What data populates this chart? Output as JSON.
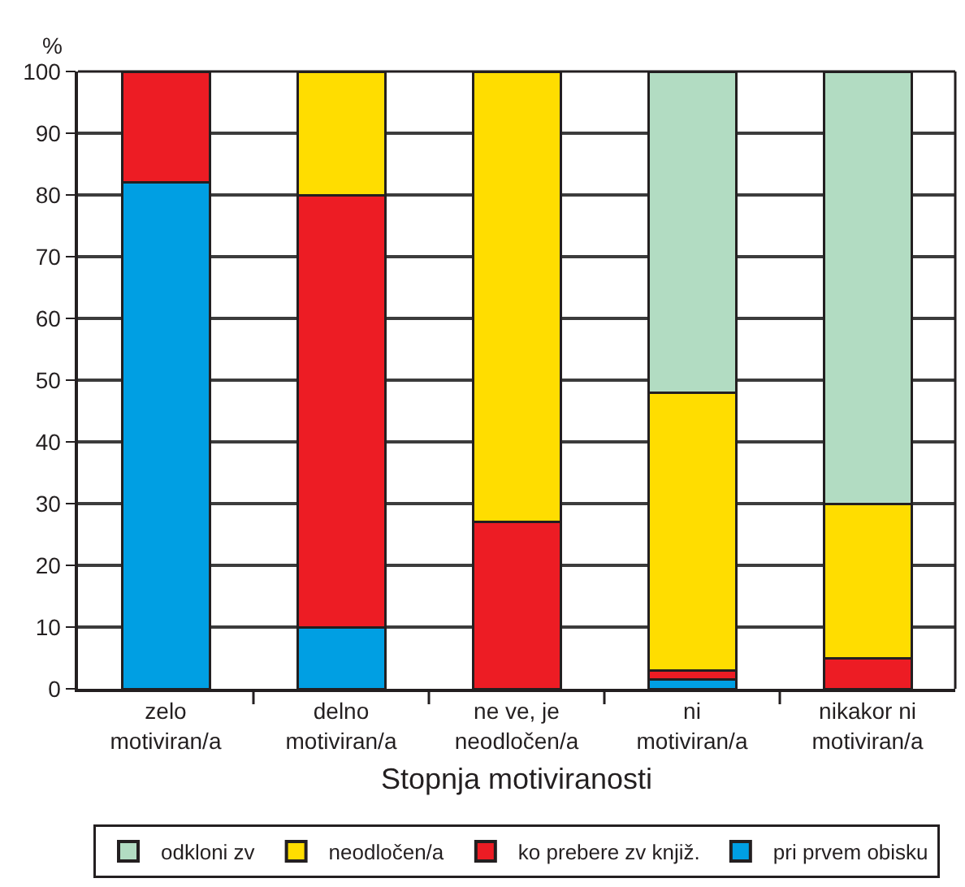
{
  "chart_data": {
    "type": "bar",
    "stacked": true,
    "xlabel": "Stopnja motiviranosti",
    "ylabel": "%",
    "categories": [
      "zelo\nmotiviran/a",
      "delno\nmotiviran/a",
      "ne ve, je\nneodločen/a",
      "ni\nmotiviran/a",
      "nikakor ni\nmotiviran/a"
    ],
    "series": [
      {
        "name": "pri prvem obisku",
        "color": "#009fe3",
        "values": [
          82,
          10,
          null,
          1.5,
          null
        ]
      },
      {
        "name": "ko prebere zv knjiž.",
        "color": "#ed1c24",
        "values": [
          18,
          70,
          27,
          1.5,
          5
        ]
      },
      {
        "name": "neodločen/a",
        "color": "#ffdd00",
        "values": [
          null,
          20,
          73,
          45,
          25
        ]
      },
      {
        "name": "odkloni zv",
        "color": "#b2dcc2",
        "values": [
          null,
          null,
          null,
          52,
          70
        ]
      }
    ],
    "ylim": [
      0,
      100
    ],
    "yticks": [
      0,
      10,
      20,
      30,
      40,
      50,
      60,
      70,
      80,
      90,
      100
    ],
    "grid": "y",
    "legend": "bottom"
  }
}
